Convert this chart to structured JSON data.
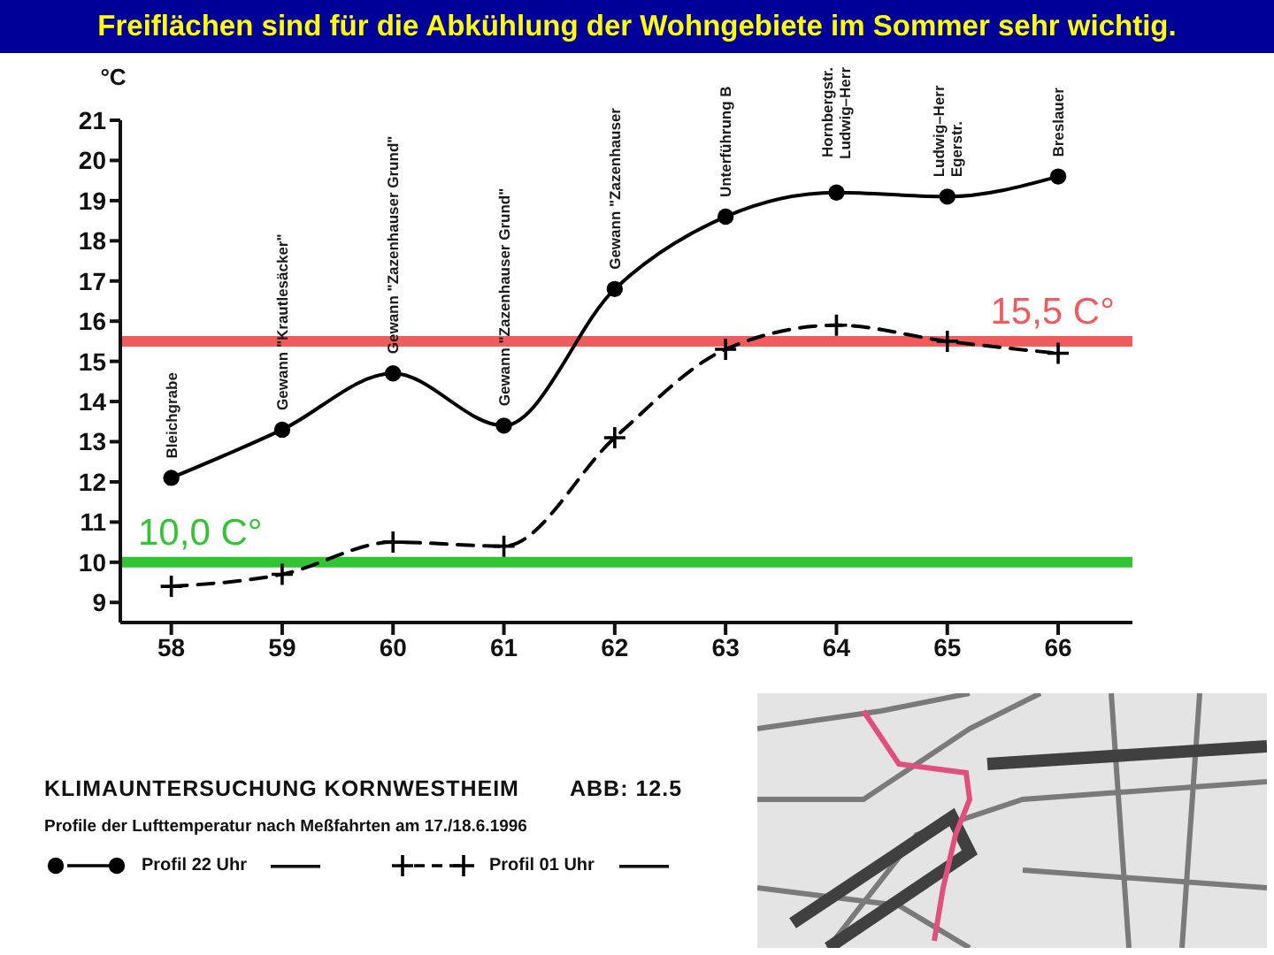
{
  "chart_data": {
    "type": "line",
    "title": "Freiflächen sind für die Abkühlung der Wohngebiete im Sommer sehr wichtig.",
    "subtitle": "KLIMAUNTERSUCHUNG KORNWESTHEIM",
    "ylabel": "°C",
    "annotations": [
      "ABB: 12.5",
      "Profile der Lufttemperatur nach Meßfahrten am 17./18.6.1996",
      "Bleichgrabe",
      "Gewann \"Krautlesäcker\"",
      "Gewann \"Zazenhauser Grund\"",
      "Gewann \"Zazenhauser Grund\"",
      "Gewann \"Zazenhauser",
      "Unterführung B",
      "Hornbergstr.\nLudwig–Herr",
      "Ludwig–Herr\nEgerstr.",
      "Breslauer"
    ],
    "categories": [
      "58",
      "59",
      "60",
      "61",
      "62",
      "63",
      "64",
      "65",
      "66"
    ],
    "series": [
      {
        "name": "Profil 22 Uhr",
        "color": "#000000",
        "marker": "circle",
        "line_style": "solid",
        "values": [
          12.1,
          13.3,
          14.7,
          13.4,
          16.8,
          18.6,
          19.2,
          19.1,
          19.6
        ]
      },
      {
        "name": "Profil 01 Uhr",
        "color": "#000000",
        "marker": "cross",
        "line_style": "dashed",
        "values": [
          9.4,
          9.7,
          10.5,
          10.4,
          13.1,
          15.3,
          15.9,
          15.5,
          15.2
        ]
      }
    ],
    "ylim": [
      8.5,
      21
    ],
    "yticks": [
      9,
      10,
      11,
      12,
      13,
      14,
      15,
      16,
      17,
      18,
      19,
      20,
      21
    ],
    "ref_lines": [
      {
        "axis": "y",
        "value": 15.5,
        "label": "15,5 C°",
        "color": "#f05c5c"
      },
      {
        "axis": "y",
        "value": 10,
        "label": "10,0 C°",
        "color": "#33c433"
      }
    ],
    "legend": "bottom left"
  }
}
